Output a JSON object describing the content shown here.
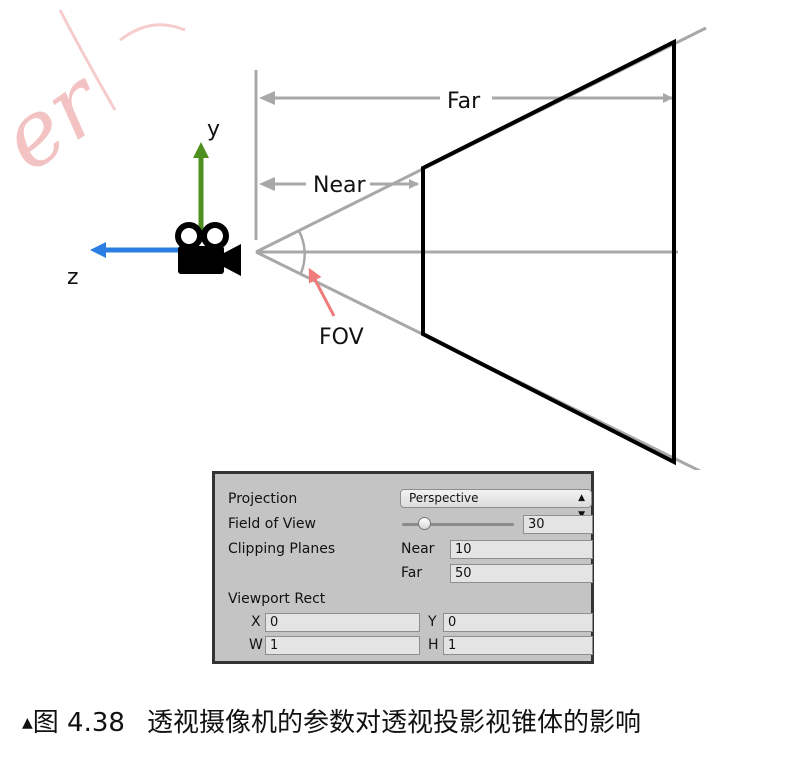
{
  "diagram": {
    "axes": {
      "y_label": "y",
      "z_label": "z"
    },
    "dimensions": {
      "far_label": "Far",
      "near_label": "Near",
      "fov_label": "FOV"
    },
    "watermark": "er",
    "colors": {
      "y_axis": "#4e8f1e",
      "z_axis": "#2a7de1",
      "fov_arrow": "#ef7b7b",
      "guide": "#a8a8a8",
      "frustum": "#000000"
    },
    "icon": "video-camera-icon"
  },
  "inspector": {
    "projection": {
      "label": "Projection",
      "value": "Perspective"
    },
    "field_of_view": {
      "label": "Field of View",
      "value": "30",
      "slider_fraction": 0.2
    },
    "clipping_planes": {
      "label": "Clipping Planes",
      "near_label": "Near",
      "near_value": "10",
      "far_label": "Far",
      "far_value": "50"
    },
    "viewport_rect": {
      "label": "Viewport Rect",
      "x_label": "X",
      "x_value": "0",
      "y_label": "Y",
      "y_value": "0",
      "w_label": "W",
      "w_value": "1",
      "h_label": "H",
      "h_value": "1"
    }
  },
  "caption": {
    "figure_number": "图 4.38",
    "text": "透视摄像机的参数对透视投影视锥体的影响"
  }
}
